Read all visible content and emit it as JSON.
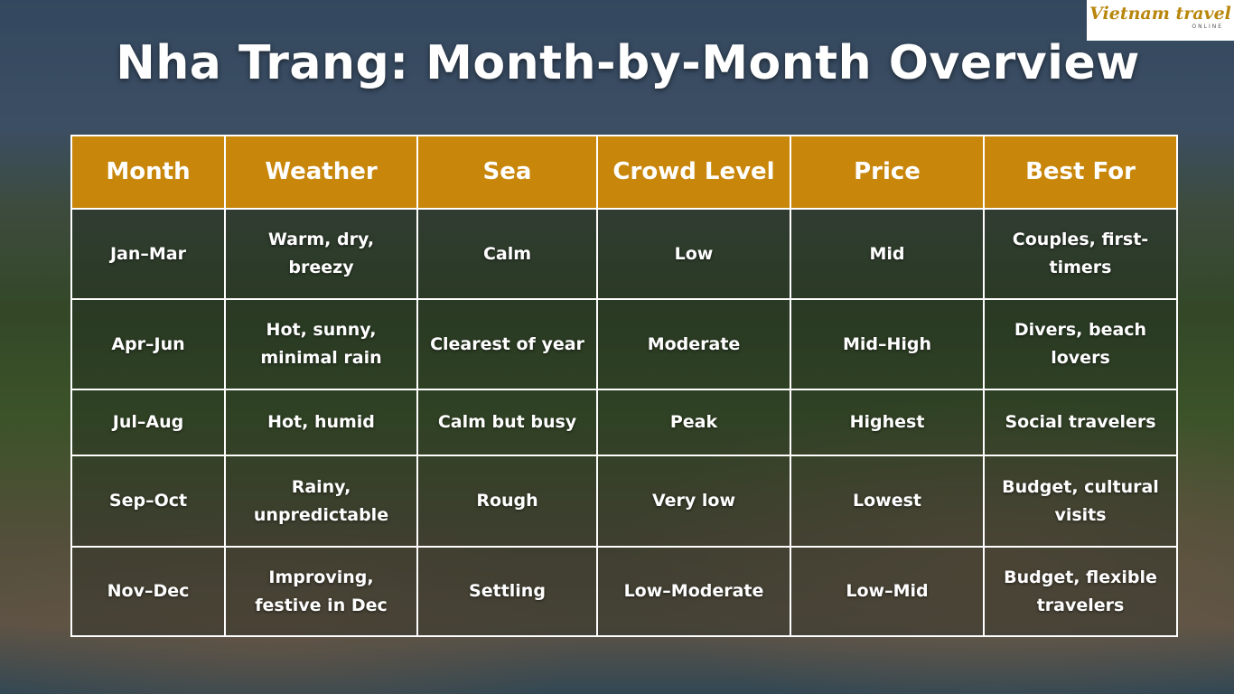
{
  "header": {
    "title": "Nha Trang: Month-by-Month Overview",
    "logo": "Vietnam travel",
    "logo_sub": "ONLINE"
  },
  "table": {
    "columns": [
      "Month",
      "Weather",
      "Sea",
      "Crowd Level",
      "Price",
      "Best For"
    ],
    "rows": [
      [
        "Jan–Mar",
        "Warm, dry, breezy",
        "Calm",
        "Low",
        "Mid",
        "Couples, first-timers"
      ],
      [
        "Apr–Jun",
        "Hot, sunny, minimal rain",
        "Clearest of year",
        "Moderate",
        "Mid–High",
        "Divers, beach lovers"
      ],
      [
        "Jul–Aug",
        "Hot, humid",
        "Calm but busy",
        "Peak",
        "Highest",
        "Social travelers"
      ],
      [
        "Sep–Oct",
        "Rainy, unpredictable",
        "Rough",
        "Very low",
        "Lowest",
        "Budget, cultural visits"
      ],
      [
        "Nov–Dec",
        "Improving, festive in Dec",
        "Settling",
        "Low–Moderate",
        "Low–Mid",
        "Budget, flexible travelers"
      ]
    ]
  }
}
